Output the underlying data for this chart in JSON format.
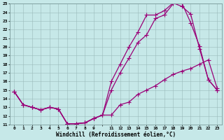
{
  "bg_color": "#c6e8e8",
  "grid_color": "#9ababa",
  "line_color": "#990077",
  "xlabel": "Windchill (Refroidissement éolien,°C)",
  "ylim": [
    11,
    25
  ],
  "y_ticks": [
    11,
    12,
    13,
    14,
    15,
    16,
    17,
    18,
    19,
    20,
    21,
    22,
    23,
    24,
    25
  ],
  "x_labels": [
    "0",
    "1",
    "2",
    "3",
    "4",
    "5",
    "6",
    "7",
    "8",
    "9",
    "",
    "11",
    "12",
    "13",
    "14",
    "15",
    "16",
    "17",
    "18",
    "19",
    "20",
    "21",
    "22",
    "23"
  ],
  "hours": [
    0,
    1,
    2,
    3,
    4,
    5,
    6,
    7,
    8,
    9,
    10,
    11,
    12,
    13,
    14,
    15,
    16,
    17,
    18,
    19,
    20,
    21,
    22,
    23
  ],
  "line1_y": [
    14.8,
    13.3,
    13.0,
    12.7,
    13.0,
    12.8,
    11.1,
    11.1,
    11.2,
    11.7,
    12.1,
    12.1,
    13.3,
    13.6,
    14.5,
    15.0,
    15.5,
    16.2,
    16.8,
    17.2,
    17.5,
    18.0,
    18.5,
    15.2
  ],
  "line2_y": [
    14.8,
    13.3,
    13.0,
    12.7,
    13.0,
    12.8,
    11.1,
    11.1,
    11.2,
    11.7,
    12.1,
    15.0,
    17.0,
    18.7,
    20.5,
    21.4,
    23.3,
    23.7,
    25.0,
    25.1,
    22.8,
    20.1,
    16.2,
    15.0
  ],
  "line3_y": [
    14.8,
    13.3,
    13.0,
    12.7,
    13.0,
    12.8,
    11.1,
    11.1,
    11.2,
    11.7,
    12.1,
    16.0,
    18.0,
    20.0,
    21.7,
    23.7,
    23.7,
    24.2,
    25.1,
    24.7,
    23.8,
    19.8,
    16.2,
    15.0
  ],
  "marker_size": 2.0,
  "line_width": 0.9,
  "tick_fontsize": 4.5,
  "xlabel_fontsize": 5.5
}
